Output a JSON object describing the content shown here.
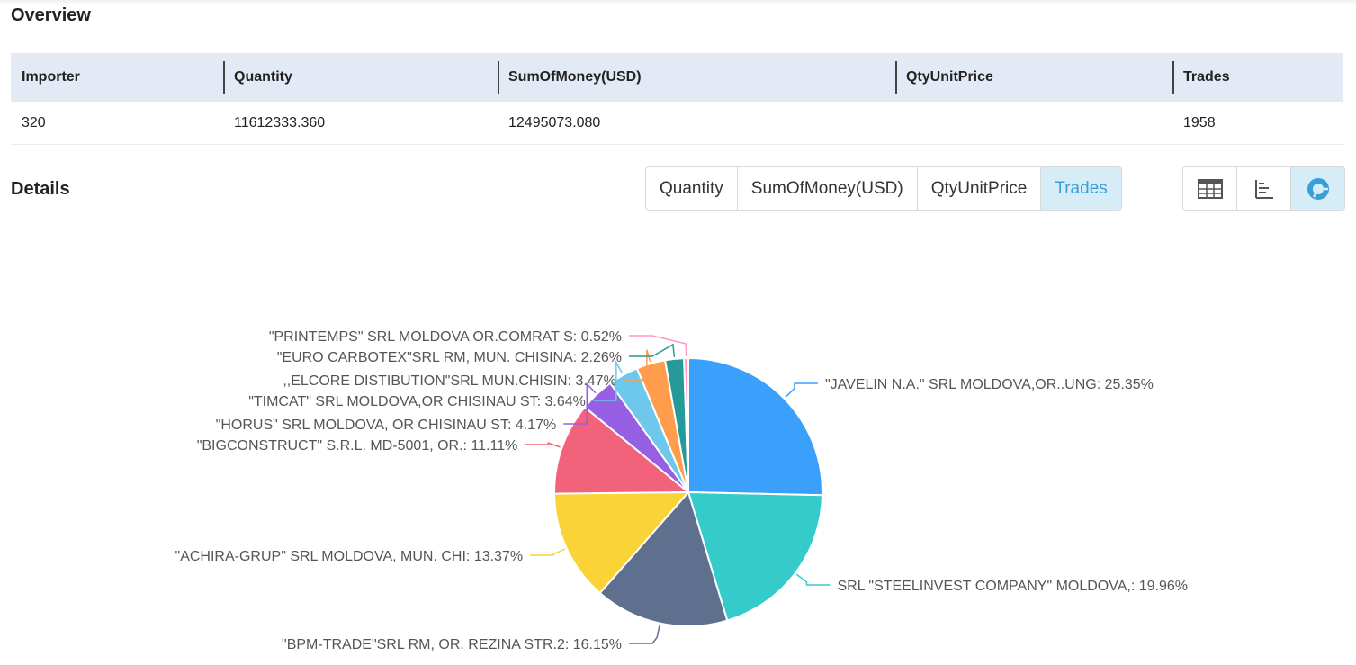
{
  "overview": {
    "title": "Overview",
    "columns": [
      "Importer",
      "Quantity",
      "SumOfMoney(USD)",
      "QtyUnitPrice",
      "Trades"
    ],
    "row": [
      "320",
      "11612333.360",
      "12495073.080",
      "",
      "1958"
    ]
  },
  "details": {
    "title": "Details",
    "metric_tabs": [
      "Quantity",
      "SumOfMoney(USD)",
      "QtyUnitPrice",
      "Trades"
    ],
    "active_metric": "Trades",
    "view_modes": [
      "table-view-icon",
      "bar-chart-icon",
      "pie-chart-icon"
    ],
    "active_view": "pie-chart-icon",
    "accent_color": "#3a9fd8"
  },
  "chart_data": {
    "type": "pie",
    "slices": [
      {
        "label": "\"JAVELIN N.A.\" SRL MOLDOVA,OR..UNG",
        "value": 25.35,
        "color": "#3ba0fb"
      },
      {
        "label": "SRL \"STEELINVEST COMPANY\" MOLDOVA,",
        "value": 19.96,
        "color": "#36cbcb"
      },
      {
        "label": "\"BPM-TRADE\"SRL RM, OR. REZINA STR.2",
        "value": 16.15,
        "color": "#5f708e"
      },
      {
        "label": "\"ACHIRA-GRUP\" SRL MOLDOVA, MUN. CHI",
        "value": 13.37,
        "color": "#fad337"
      },
      {
        "label": "\"BIGCONSTRUCT\" S.R.L. MD-5001, OR.",
        "value": 11.11,
        "color": "#f2637b"
      },
      {
        "label": "\"HORUS\" SRL MOLDOVA, OR CHISINAU ST",
        "value": 4.17,
        "color": "#975fe4"
      },
      {
        "label": "\"TIMCAT\" SRL MOLDOVA,OR CHISINAU ST",
        "value": 3.64,
        "color": "#6dc8ec"
      },
      {
        "label": ",,ELCORE DISTIBUTION\"SRL MUN.CHISIN",
        "value": 3.47,
        "color": "#ff9d4d"
      },
      {
        "label": "\"EURO CARBOTEX\"SRL RM, MUN. CHISINA",
        "value": 2.26,
        "color": "#269a99"
      },
      {
        "label": "\"PRINTEMPS\" SRL MOLDOVA OR.COMRAT S",
        "value": 0.52,
        "color": "#ff99c3"
      }
    ]
  }
}
